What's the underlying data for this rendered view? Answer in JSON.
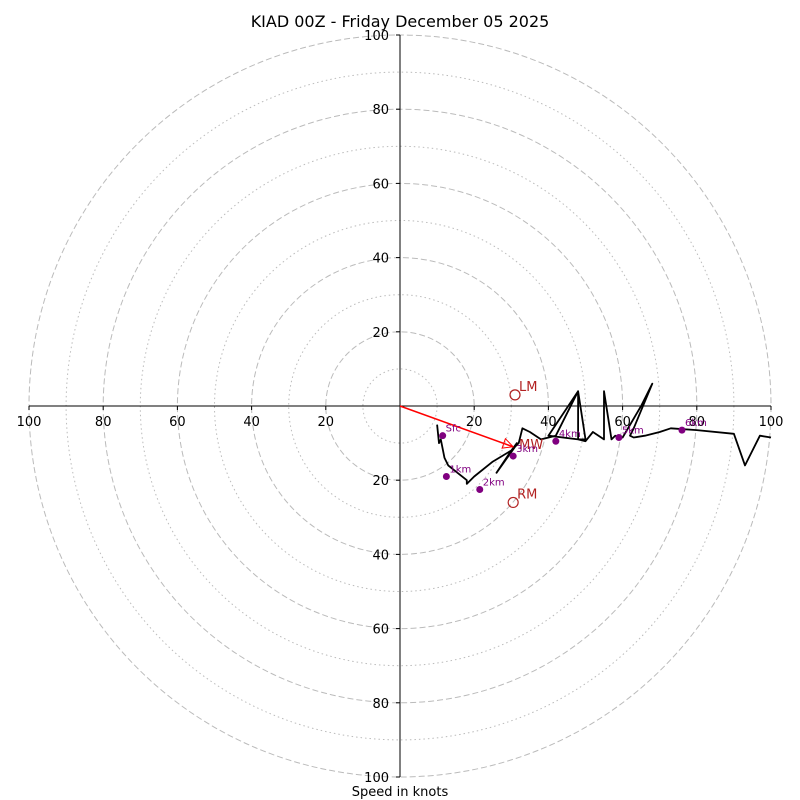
{
  "chart_data": {
    "type": "hodograph",
    "title": "KIAD 00Z - Friday December 05 2025",
    "xlabel": "Speed in knots",
    "xlim": [
      -100,
      100
    ],
    "ylim": [
      -100,
      100
    ],
    "rings_major": [
      20,
      40,
      60,
      80,
      100
    ],
    "rings_minor": [
      10,
      30,
      50,
      70,
      90
    ],
    "x_tick_values": [
      -100,
      -80,
      -60,
      -40,
      -20,
      20,
      40,
      60,
      80,
      100
    ],
    "x_tick_labels": [
      "100",
      "80",
      "60",
      "40",
      "20",
      "20",
      "40",
      "60",
      "80",
      "100"
    ],
    "y_tick_values": [
      100,
      80,
      60,
      40,
      20,
      -20,
      -40,
      -60,
      -80,
      -100
    ],
    "y_tick_labels": [
      "100",
      "80",
      "60",
      "40",
      "20",
      "20",
      "40",
      "60",
      "80",
      "100"
    ],
    "trace": [
      [
        10,
        -5
      ],
      [
        10.5,
        -10
      ],
      [
        11,
        -9
      ],
      [
        12,
        -14
      ],
      [
        13,
        -16
      ],
      [
        18,
        -20
      ],
      [
        18,
        -21
      ],
      [
        20,
        -19
      ],
      [
        25,
        -15
      ],
      [
        30,
        -12
      ],
      [
        31.5,
        -10
      ],
      [
        30,
        -12
      ],
      [
        26,
        -18
      ],
      [
        31,
        -11
      ],
      [
        32,
        -10
      ],
      [
        33,
        -6
      ],
      [
        35,
        -7
      ],
      [
        38,
        -9
      ],
      [
        42,
        -8
      ],
      [
        48,
        4
      ],
      [
        40,
        -8
      ],
      [
        48,
        -9
      ],
      [
        50,
        -9
      ],
      [
        48,
        4
      ],
      [
        48,
        -9
      ],
      [
        50,
        -9.5
      ],
      [
        52,
        -7
      ],
      [
        55,
        -9
      ],
      [
        55,
        4
      ],
      [
        57,
        -9
      ],
      [
        58,
        -8
      ],
      [
        60,
        -8.5
      ],
      [
        65,
        0
      ],
      [
        68,
        6
      ],
      [
        63,
        -6
      ],
      [
        62,
        -8
      ],
      [
        63,
        -8.5
      ],
      [
        66,
        -8
      ],
      [
        70,
        -7
      ],
      [
        73,
        -6
      ],
      [
        80,
        -6.5
      ],
      [
        90,
        -7.5
      ],
      [
        93,
        -16
      ],
      [
        97,
        -8
      ],
      [
        100,
        -8.5
      ]
    ],
    "height_markers": [
      {
        "label": "Sfc",
        "x": 11.5,
        "y": -8
      },
      {
        "label": "1km",
        "x": 12.5,
        "y": -19
      },
      {
        "label": "2km",
        "x": 21.5,
        "y": -22.5
      },
      {
        "label": "3km",
        "x": 30.5,
        "y": -13.5
      },
      {
        "label": "4km",
        "x": 42,
        "y": -9.5
      },
      {
        "label": "5km",
        "x": 59,
        "y": -8.5
      },
      {
        "label": "6km",
        "x": 76,
        "y": -6.5
      }
    ],
    "storm_motion": [
      {
        "label": "LM",
        "x": 31,
        "y": 3
      },
      {
        "label": "RM",
        "x": 30.5,
        "y": -26
      }
    ],
    "mean_wind": {
      "label": "MW",
      "x": 30.5,
      "y": -11
    },
    "colors": {
      "ring": "#bbbbbb",
      "trace": "#000000",
      "marker": "#800080",
      "storm": "#b22222",
      "arrow": "#ff0000"
    }
  }
}
